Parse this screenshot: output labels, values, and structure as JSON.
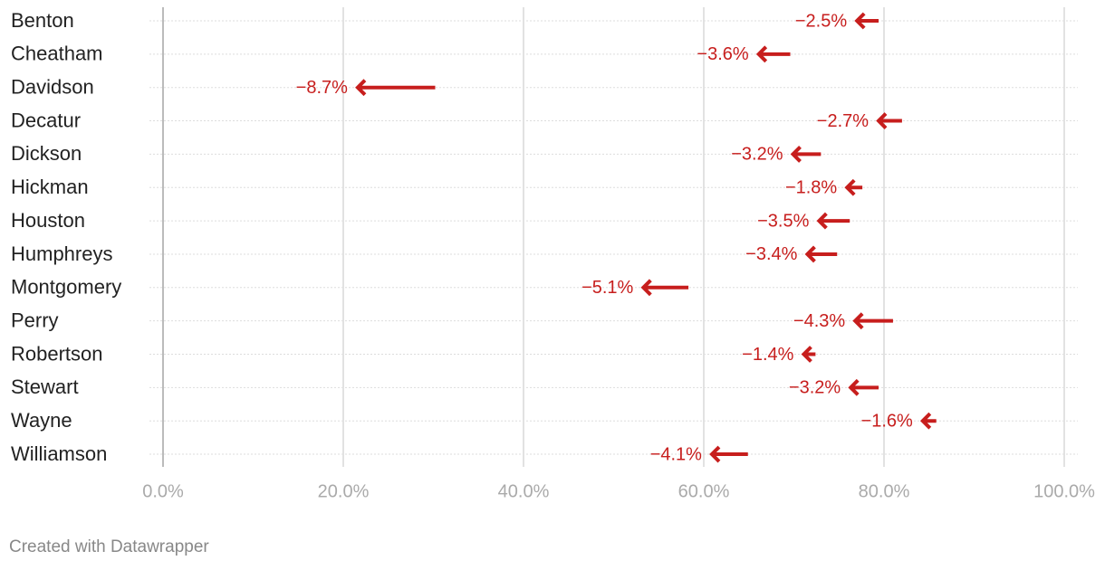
{
  "chart_data": {
    "type": "arrow",
    "categories": [
      "Benton",
      "Cheatham",
      "Davidson",
      "Decatur",
      "Dickson",
      "Hickman",
      "Houston",
      "Humphreys",
      "Montgomery",
      "Perry",
      "Robertson",
      "Stewart",
      "Wayne",
      "Williamson"
    ],
    "start": [
      79.4,
      69.6,
      30.2,
      82.0,
      73.0,
      77.6,
      76.2,
      74.8,
      58.3,
      81.0,
      72.4,
      79.4,
      85.8,
      64.9
    ],
    "end": [
      76.9,
      66.0,
      21.5,
      79.3,
      69.8,
      75.8,
      72.7,
      71.4,
      53.2,
      76.7,
      71.0,
      76.2,
      84.2,
      60.8
    ],
    "change": {
      "values": [
        -2.5,
        -3.6,
        -8.7,
        -2.7,
        -3.2,
        -1.8,
        -3.5,
        -3.4,
        -5.1,
        -4.3,
        -1.4,
        -3.2,
        -1.6,
        -4.1
      ],
      "value_labels": [
        "−2.5%",
        "−3.6%",
        "−8.7%",
        "−2.7%",
        "−3.2%",
        "−1.8%",
        "−3.5%",
        "−3.4%",
        "−5.1%",
        "−4.3%",
        "−1.4%",
        "−3.2%",
        "−1.6%",
        "−4.1%"
      ]
    },
    "color": "#c71e1d",
    "xlim": [
      0,
      100
    ],
    "xticks": [
      {
        "value": 0,
        "label": "0.0%"
      },
      {
        "value": 20,
        "label": "20.0%"
      },
      {
        "value": 40,
        "label": "40.0%"
      },
      {
        "value": 60,
        "label": "60.0%"
      },
      {
        "value": 80,
        "label": "80.0%"
      },
      {
        "value": 100,
        "label": "100.0%"
      }
    ],
    "grid": true,
    "footer": "Created with Datawrapper"
  }
}
